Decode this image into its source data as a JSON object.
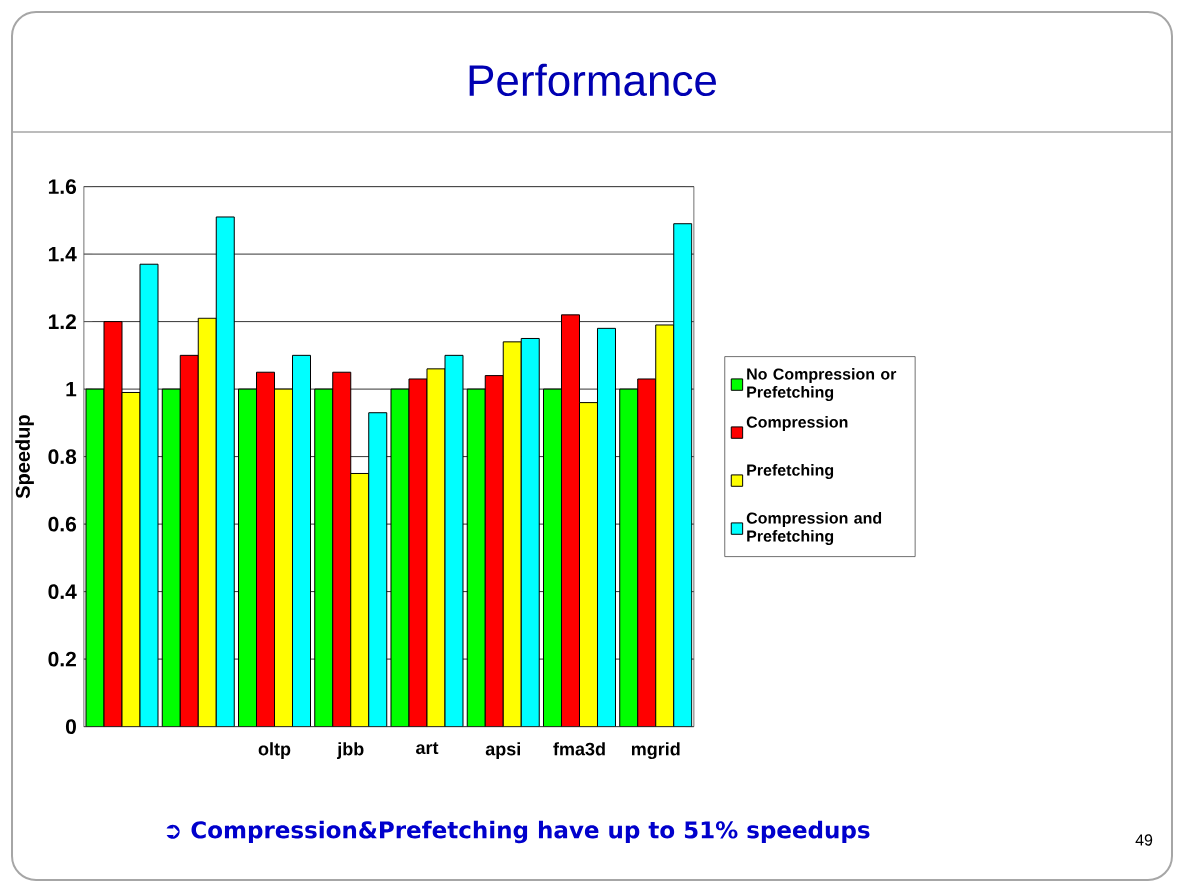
{
  "chart_data": {
    "type": "bar",
    "title": "Performance",
    "ylabel": "Speedup",
    "categories": [
      null,
      null,
      "oltp",
      "jbb",
      "art",
      "apsi",
      "fma3d",
      "mgrid"
    ],
    "series": [
      {
        "name": "No Compression or Prefetching",
        "color": "#00ff00",
        "values": [
          1,
          1,
          1,
          1,
          1,
          1,
          1,
          1
        ]
      },
      {
        "name": "Compression",
        "color": "#ff0000",
        "values": [
          1.2,
          1.1,
          1.05,
          1.05,
          1.03,
          1.04,
          1.22,
          1.03
        ]
      },
      {
        "name": "Prefetching",
        "color": "#ffff00",
        "values": [
          0.99,
          1.21,
          1.0,
          0.75,
          1.06,
          1.14,
          0.96,
          1.19
        ]
      },
      {
        "name": "Compression and Prefetching",
        "color": "#00ffff",
        "values": [
          1.37,
          1.51,
          1.1,
          0.93,
          1.1,
          1.15,
          1.18,
          1.49
        ]
      }
    ],
    "ylim": [
      0,
      1.6
    ],
    "yticks": [
      0,
      0.2,
      0.4,
      0.6,
      0.8,
      1,
      1.2,
      1.4,
      1.6
    ],
    "grid": "y",
    "legend": "right",
    "annotations": [
      "➲ Compression&Prefetching have up to 51% speedups",
      "49"
    ]
  }
}
